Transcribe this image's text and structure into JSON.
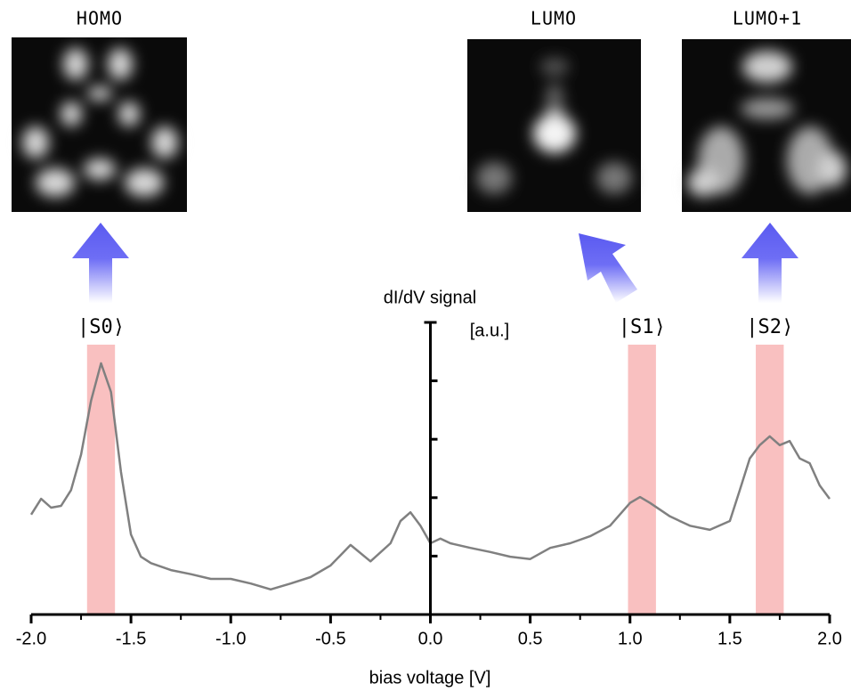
{
  "chart_data": {
    "type": "line",
    "xlabel": "bias voltage [V]",
    "ylabel": "dI/dV signal",
    "yunit": "[a.u.]",
    "orbital_labels": [
      "HOMO",
      "LUMO",
      "LUMO+1"
    ],
    "color": "#808080",
    "x": [
      -2.0,
      -1.95,
      -1.9,
      -1.85,
      -1.8,
      -1.75,
      -1.7,
      -1.65,
      -1.6,
      -1.55,
      -1.5,
      -1.45,
      -1.4,
      -1.3,
      -1.2,
      -1.1,
      -1.0,
      -0.9,
      -0.8,
      -0.7,
      -0.6,
      -0.5,
      -0.4,
      -0.3,
      -0.2,
      -0.15,
      -0.1,
      -0.05,
      0.0,
      0.05,
      0.1,
      0.2,
      0.3,
      0.4,
      0.5,
      0.6,
      0.7,
      0.8,
      0.9,
      1.0,
      1.05,
      1.1,
      1.2,
      1.3,
      1.4,
      1.5,
      1.55,
      1.6,
      1.65,
      1.7,
      1.75,
      1.8,
      1.85,
      1.9,
      1.95,
      2.0
    ],
    "values": [
      1.71,
      1.98,
      1.83,
      1.86,
      2.13,
      2.74,
      3.66,
      4.3,
      3.81,
      2.44,
      1.37,
      0.99,
      0.88,
      0.76,
      0.69,
      0.61,
      0.61,
      0.53,
      0.43,
      0.53,
      0.64,
      0.84,
      1.19,
      0.91,
      1.22,
      1.6,
      1.75,
      1.52,
      1.22,
      1.3,
      1.22,
      1.14,
      1.07,
      0.99,
      0.95,
      1.14,
      1.22,
      1.34,
      1.52,
      1.91,
      2.01,
      1.91,
      1.68,
      1.52,
      1.45,
      1.6,
      2.13,
      2.67,
      2.9,
      3.05,
      2.9,
      2.97,
      2.67,
      2.59,
      2.21,
      1.98
    ],
    "bands": [
      {
        "label": "|S0⟩",
        "range": [
          -1.72,
          -1.58
        ],
        "color": "#f9c0c0"
      },
      {
        "label": "|S1⟩",
        "range": [
          0.99,
          1.13
        ],
        "color": "#f9c0c0"
      },
      {
        "label": "|S2⟩",
        "range": [
          1.63,
          1.77
        ],
        "color": "#f9c0c0"
      }
    ],
    "xlim": [
      -2.0,
      2.0
    ],
    "xticks": [
      {
        "value": -2.0,
        "label": "-2.0"
      },
      {
        "value": -1.5,
        "label": "-1.5"
      },
      {
        "value": -1.0,
        "label": "-1.0"
      },
      {
        "value": -0.5,
        "label": "-0.5"
      },
      {
        "value": 0.0,
        "label": "0.0"
      },
      {
        "value": 0.5,
        "label": "0.5"
      },
      {
        "value": 1.0,
        "label": "1.0"
      },
      {
        "value": 1.5,
        "label": "1.5"
      },
      {
        "value": 2.0,
        "label": "2.0"
      }
    ],
    "ylim": [
      0,
      5
    ],
    "yticks": [
      1,
      2,
      3,
      4
    ]
  }
}
